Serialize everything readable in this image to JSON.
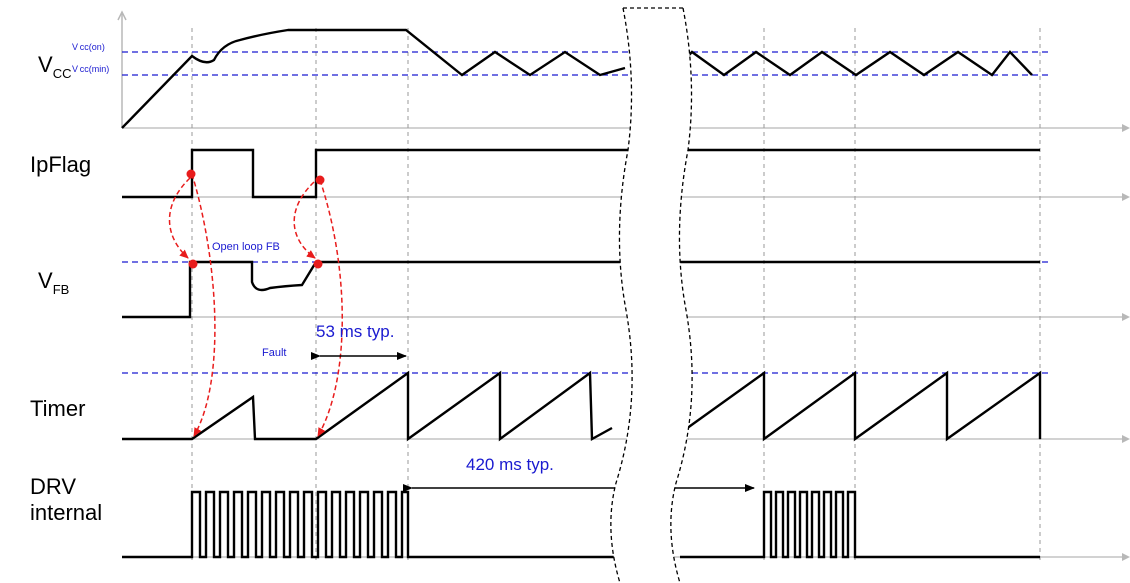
{
  "signals": {
    "vcc": {
      "main": "V",
      "sub": "CC"
    },
    "ipflag": {
      "label": "IpFlag"
    },
    "vfb": {
      "main": "V",
      "sub": "FB"
    },
    "timer": {
      "label": "Timer"
    },
    "drv": {
      "line1": "DRV",
      "line2": "internal"
    }
  },
  "thresholds": {
    "vcc_on": "V cc(on)",
    "vcc_min": "V cc(min)"
  },
  "annotations": {
    "open_loop": "Open loop FB",
    "fault": "Fault",
    "t53": "53 ms typ.",
    "t420": "420 ms typ."
  },
  "colors": {
    "signal": "#000000",
    "threshold": "#1a1ad0",
    "marker": "#e81c1c",
    "axis": "#b8b8b8",
    "gridline": "#9a9a9a"
  }
}
